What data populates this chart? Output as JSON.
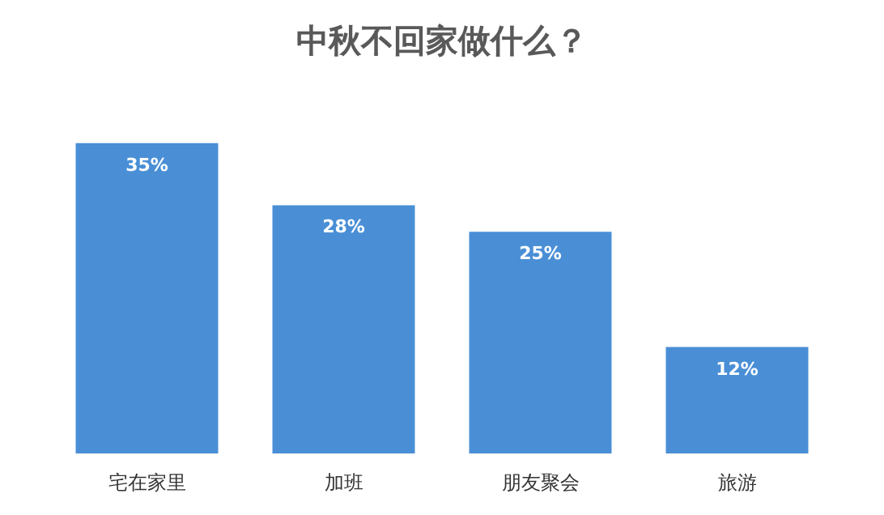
{
  "chart_data": {
    "type": "bar",
    "title": "中秋不回家做什么？",
    "categories": [
      "宅在家里",
      "加班",
      "朋友聚会",
      "旅游"
    ],
    "values": [
      35,
      28,
      25,
      12
    ],
    "value_labels": [
      "35%",
      "28%",
      "25%",
      "12%"
    ],
    "color": "#4a8fd6",
    "grid": false
  }
}
